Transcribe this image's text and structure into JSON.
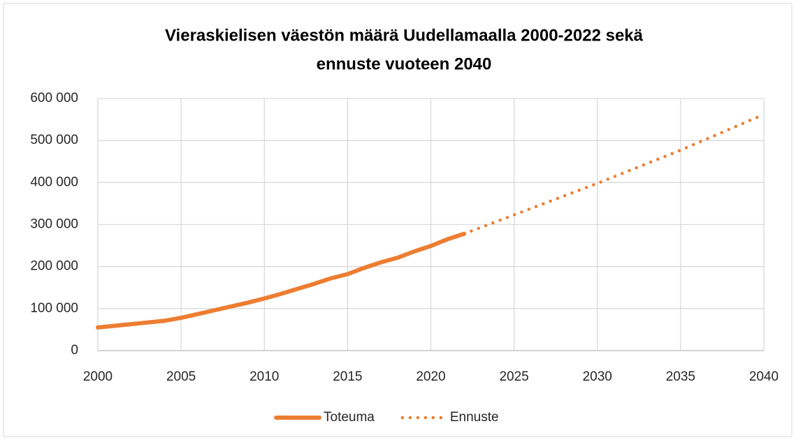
{
  "chart_data": {
    "type": "line",
    "title": [
      "Vieraskielisen väestön määrä Uudellamaalla  2000-2022 sekä",
      "ennuste vuoteen 2040"
    ],
    "series": [
      {
        "name": "Toteuma",
        "color": "#ed7d31",
        "style": "solid",
        "x": [
          2000,
          2001,
          2002,
          2003,
          2004,
          2005,
          2006,
          2007,
          2008,
          2009,
          2010,
          2011,
          2012,
          2013,
          2014,
          2015,
          2016,
          2017,
          2018,
          2019,
          2020,
          2021,
          2022
        ],
        "values": [
          55000,
          59000,
          63000,
          67000,
          71000,
          78000,
          87000,
          96000,
          105000,
          114000,
          124000,
          135000,
          147000,
          159000,
          172000,
          182000,
          197000,
          210000,
          221000,
          236000,
          249000,
          265000,
          278000
        ]
      },
      {
        "name": "Ennuste",
        "color": "#ed7d31",
        "style": "dotted",
        "x": [
          2022,
          2025,
          2030,
          2035,
          2040
        ],
        "values": [
          278000,
          323000,
          398000,
          477000,
          562000
        ]
      }
    ],
    "xlim": [
      2000,
      2040
    ],
    "xticks": [
      2000,
      2005,
      2010,
      2015,
      2020,
      2025,
      2030,
      2035,
      2040
    ],
    "ylim": [
      0,
      600000
    ],
    "yticks": [
      0,
      {
        "value": 100000,
        "label": "100 000"
      },
      {
        "value": 200000,
        "label": "200 000"
      },
      {
        "value": 300000,
        "label": "300 000"
      },
      {
        "value": 400000,
        "label": "400 000"
      },
      {
        "value": 500000,
        "label": "500 000"
      },
      {
        "value": 600000,
        "label": "600 000"
      }
    ],
    "grid": true,
    "legend": "bottom"
  }
}
